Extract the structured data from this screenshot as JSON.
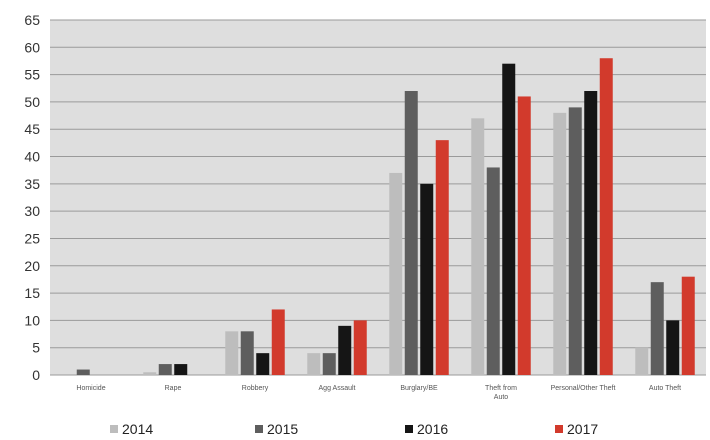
{
  "chart_data": {
    "type": "bar",
    "title": "",
    "xlabel": "",
    "ylabel": "",
    "ylim": [
      0,
      65
    ],
    "yticks": [
      0,
      5,
      10,
      15,
      20,
      25,
      30,
      35,
      40,
      45,
      50,
      55,
      60,
      65
    ],
    "grid": true,
    "legend_position": "bottom",
    "categories": [
      "Homicide",
      "Rape",
      "Robbery",
      "Agg Assault",
      "Burglary/BE",
      "Theft from Auto",
      "Personal/Other Theft",
      "Auto Theft"
    ],
    "series": [
      {
        "name": "2014",
        "color": "#bdbdbd",
        "values": [
          0,
          0.5,
          8,
          4,
          37,
          47,
          48,
          5
        ]
      },
      {
        "name": "2015",
        "color": "#5e5e5e",
        "values": [
          1,
          2,
          8,
          4,
          52,
          38,
          49,
          17
        ]
      },
      {
        "name": "2016",
        "color": "#151515",
        "values": [
          0,
          2,
          4,
          9,
          35,
          57,
          52,
          10
        ]
      },
      {
        "name": "2017",
        "color": "#d23a2c",
        "values": [
          0,
          0,
          12,
          10,
          43,
          51,
          58,
          18
        ]
      }
    ]
  }
}
